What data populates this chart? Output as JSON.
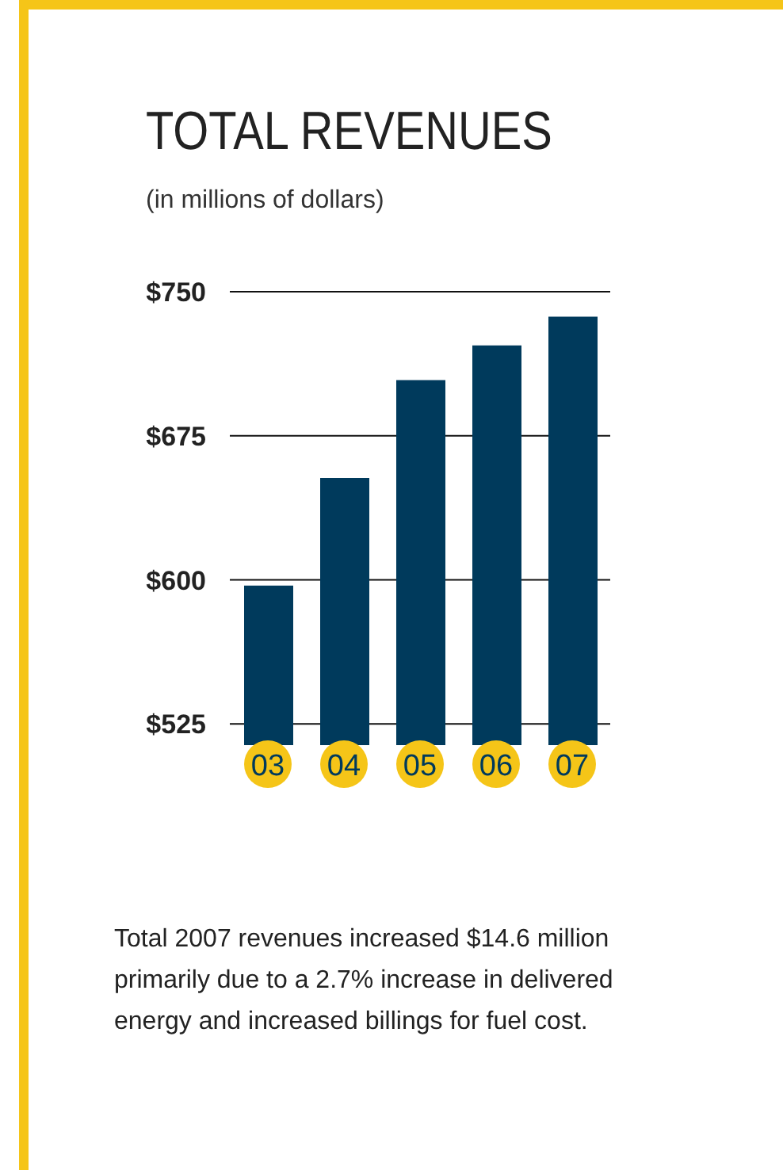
{
  "chart_data": {
    "type": "bar",
    "title": "TOTAL REVENUES",
    "subtitle": "(in millions of dollars)",
    "categories": [
      "03",
      "04",
      "05",
      "06",
      "07"
    ],
    "values": [
      597,
      653,
      704,
      722,
      737
    ],
    "color": "#003a5c",
    "ylim": [
      514,
      750
    ],
    "yticks": [
      {
        "value": 525,
        "label": "$525"
      },
      {
        "value": 600,
        "label": "$600"
      },
      {
        "value": 675,
        "label": "$675"
      },
      {
        "value": 750,
        "label": "$750"
      }
    ],
    "grid": "y",
    "legend": false,
    "annotations": [
      "Total 2007 revenues increased $14.6 million primarily due to a 2.7% increase in delivered energy and increased billings for fuel cost."
    ]
  }
}
